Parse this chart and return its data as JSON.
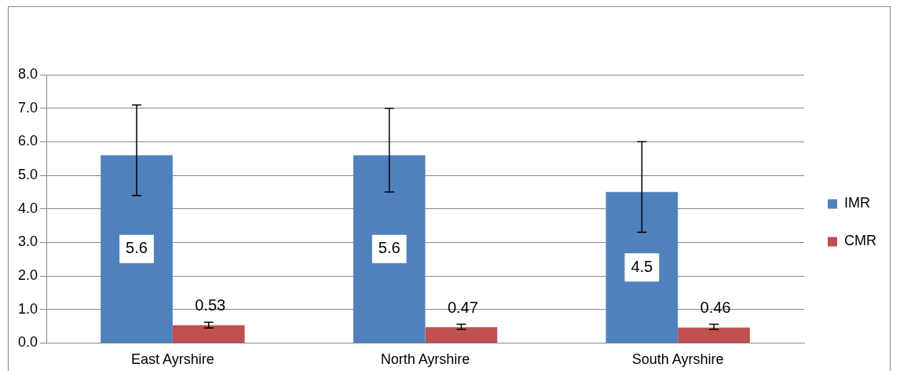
{
  "chart_data": {
    "type": "bar",
    "categories": [
      "East Ayrshire",
      "North Ayrshire",
      "South Ayrshire"
    ],
    "series": [
      {
        "name": "IMR",
        "color": "#4f81bd",
        "values": [
          5.6,
          5.6,
          4.5
        ],
        "errors": [
          [
            4.4,
            7.1
          ],
          [
            4.5,
            7.0
          ],
          [
            3.3,
            6.0
          ]
        ]
      },
      {
        "name": "CMR",
        "color": "#c0504d",
        "values": [
          0.53,
          0.47,
          0.46
        ],
        "errors": [
          [
            0.45,
            0.62
          ],
          [
            0.41,
            0.56
          ],
          [
            0.4,
            0.56
          ]
        ]
      }
    ],
    "ylim": [
      0,
      8
    ],
    "yticks": [
      {
        "value": 0,
        "label": "0.0"
      },
      {
        "value": 1,
        "label": "1.0"
      },
      {
        "value": 2,
        "label": "2.0"
      },
      {
        "value": 3,
        "label": "3.0"
      },
      {
        "value": 4,
        "label": "4.0"
      },
      {
        "value": 5,
        "label": "5.0"
      },
      {
        "value": 6,
        "label": "6.0"
      },
      {
        "value": 7,
        "label": "7.0"
      },
      {
        "value": 8,
        "label": "8.0"
      }
    ],
    "grid": "y",
    "legend": "right",
    "data_labels": true
  }
}
